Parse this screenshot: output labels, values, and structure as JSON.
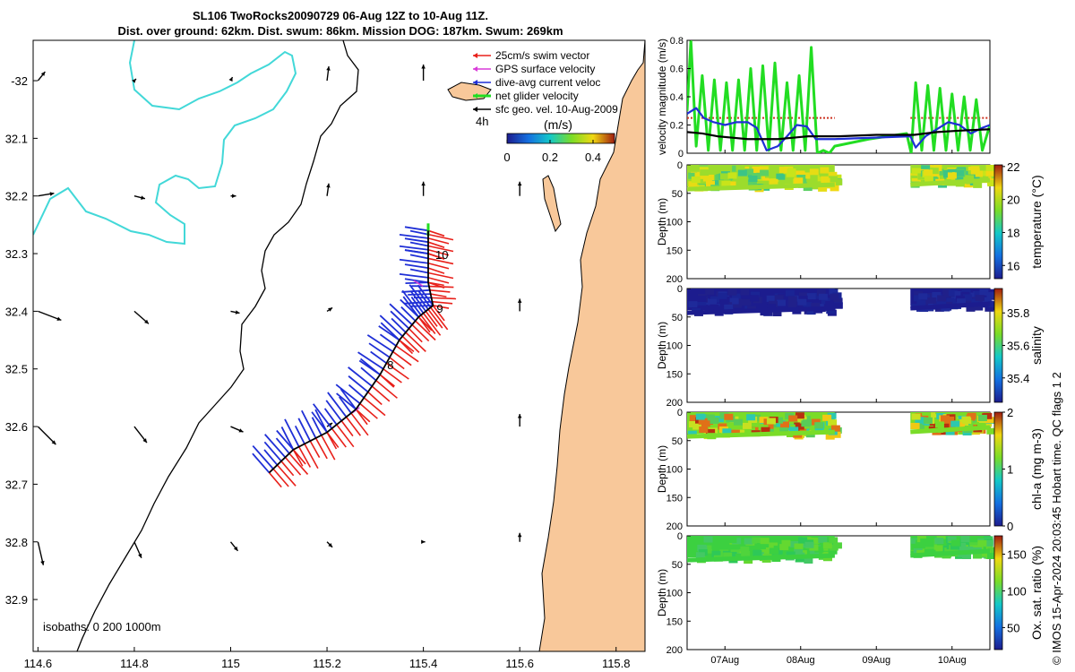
{
  "header": {
    "title_line1": "SL106 TwoRocks20090729 06-Aug 12Z to 10-Aug 11Z.",
    "title_line2": "Dist. over ground: 62km. Dist. swum: 86km. Mission DOG: 187km. Swum: 269km"
  },
  "credit": "© IMOS 15-Apr-2024 20:03:45 Hobart time. QC flags 1  2",
  "colors": {
    "swim_vector": "#e8201a",
    "gps_velocity": "#d93bd9",
    "dive_current": "#1f2fd6",
    "net_glider": "#22dd22",
    "sfc_geo": "#000000",
    "coast_fill": "#f8c89a",
    "isobath_200": "#42d8d8",
    "velocity_threshold": "#cc3322"
  },
  "chart_data": [
    {
      "type": "scatter",
      "id": "map",
      "x_ticks": [
        "114.6",
        "114.8",
        "115",
        "115.2",
        "115.4",
        "115.6",
        "115.8"
      ],
      "y_ticks": [
        "-32",
        "32.1",
        "32.2",
        "32.3",
        "32.4",
        "32.5",
        "32.6",
        "32.7",
        "32.8",
        "32.9"
      ],
      "xlim": [
        114.59,
        115.86
      ],
      "ylim": [
        -32.99,
        -31.93
      ],
      "legend": [
        {
          "label": "25cm/s swim vector",
          "color": "#e8201a"
        },
        {
          "label": "GPS surface velocity",
          "color": "#d93bd9"
        },
        {
          "label": "dive-avg current veloc",
          "color": "#1f2fd6"
        },
        {
          "label": "net glider velocity",
          "color": "#22dd22"
        },
        {
          "label": "sfc geo. vel. 10-Aug-2009",
          "color": "#000000"
        }
      ],
      "legend_position": "top-right",
      "scale_label": "4h",
      "colorbar": {
        "label": "(m/s)",
        "ticks": [
          "0",
          "0.2",
          "0.4"
        ],
        "range": [
          0,
          0.5
        ]
      },
      "isobaths_label": "isobaths: 0   200  1000m",
      "day_labels": [
        "10",
        "9",
        "8"
      ],
      "track": [
        [
          115.08,
          -32.68
        ],
        [
          115.13,
          -32.64
        ],
        [
          115.2,
          -32.61
        ],
        [
          115.26,
          -32.57
        ],
        [
          115.31,
          -32.51
        ],
        [
          115.35,
          -32.45
        ],
        [
          115.39,
          -32.41
        ],
        [
          115.42,
          -32.39
        ],
        [
          115.41,
          -32.35
        ],
        [
          115.41,
          -32.3
        ],
        [
          115.41,
          -32.26
        ]
      ]
    },
    {
      "type": "line",
      "id": "velocity",
      "ylabel": "velocity magnitude (m/s)",
      "ylim": [
        0,
        0.8
      ],
      "y_ticks": [
        "0",
        "0.2",
        "0.4",
        "0.6",
        "0.8"
      ],
      "xlim": [
        6.5,
        10.5
      ],
      "x_ticks": [
        "07Aug",
        "08Aug",
        "09Aug",
        "10Aug"
      ],
      "x_tick_values": [
        7,
        8,
        9,
        10
      ],
      "threshold": 0.25,
      "series": [
        {
          "name": "net glider velocity",
          "color": "#22dd22",
          "note": "oscillating dive cycles",
          "x": [
            6.5,
            6.55,
            6.62,
            6.7,
            6.78,
            6.86,
            6.94,
            7.02,
            7.1,
            7.18,
            7.26,
            7.34,
            7.42,
            7.5,
            7.58,
            7.66,
            7.74,
            7.82,
            7.9,
            7.98,
            8.06,
            8.14,
            8.22,
            8.3,
            8.38,
            8.45,
            8.9,
            9.4,
            9.46,
            9.52,
            9.6,
            9.68,
            9.76,
            9.84,
            9.92,
            10.0,
            10.08,
            10.16,
            10.24,
            10.32,
            10.4,
            10.5
          ],
          "y": [
            0.3,
            0.8,
            0.05,
            0.55,
            0.02,
            0.52,
            0.02,
            0.5,
            0.02,
            0.52,
            0.02,
            0.6,
            0.02,
            0.62,
            0.02,
            0.64,
            0.02,
            0.5,
            0.02,
            0.55,
            0.02,
            0.75,
            0.0,
            0.02,
            0.0,
            0.05,
            0.1,
            0.14,
            0.0,
            0.5,
            0.02,
            0.48,
            0.02,
            0.46,
            0.02,
            0.42,
            0.02,
            0.4,
            0.02,
            0.38,
            0.02,
            0.2
          ]
        },
        {
          "name": "dive-avg current veloc",
          "color": "#1f2fd6",
          "x": [
            6.5,
            6.62,
            6.72,
            6.85,
            7.0,
            7.15,
            7.3,
            7.42,
            7.55,
            7.7,
            7.82,
            7.95,
            8.08,
            8.2,
            8.35,
            8.45,
            9.45,
            9.52,
            9.65,
            9.8,
            9.95,
            10.1,
            10.25,
            10.4,
            10.5
          ],
          "y": [
            0.28,
            0.32,
            0.25,
            0.22,
            0.2,
            0.22,
            0.22,
            0.18,
            0.02,
            0.05,
            0.12,
            0.2,
            0.19,
            0.1,
            0.1,
            0.1,
            0.12,
            0.04,
            0.12,
            0.17,
            0.22,
            0.2,
            0.14,
            0.18,
            0.2
          ]
        },
        {
          "name": "sfc geo. vel.",
          "color": "#000000",
          "x": [
            6.5,
            6.7,
            6.9,
            7.1,
            7.3,
            7.5,
            7.7,
            7.9,
            8.1,
            8.3,
            8.5,
            9.0,
            9.5,
            9.8,
            10.1,
            10.5
          ],
          "y": [
            0.15,
            0.14,
            0.12,
            0.11,
            0.1,
            0.1,
            0.1,
            0.11,
            0.12,
            0.12,
            0.12,
            0.13,
            0.13,
            0.15,
            0.16,
            0.17
          ]
        }
      ]
    },
    {
      "type": "heatmap",
      "id": "temperature",
      "ylabel": "Depth (m)",
      "clabel": "temperature (°C)",
      "y_ticks": [
        "0",
        "50",
        "100",
        "150",
        "200"
      ],
      "ylim": [
        0,
        200
      ],
      "cbar_ticks": [
        "16",
        "18",
        "20",
        "22"
      ],
      "crange": [
        15.2,
        22.1
      ],
      "segments": [
        {
          "x_start": 6.5,
          "x_end": 8.45,
          "max_depth": 38
        },
        {
          "x_start": 9.45,
          "x_end": 10.5,
          "max_depth": 30
        }
      ],
      "palette": "parula-like",
      "dominant": "green-yellow"
    },
    {
      "type": "heatmap",
      "id": "salinity",
      "ylabel": "Depth (m)",
      "clabel": "salinity",
      "y_ticks": [
        "0",
        "50",
        "100",
        "150",
        "200"
      ],
      "ylim": [
        0,
        200
      ],
      "cbar_ticks": [
        "35.4",
        "35.6",
        "35.8"
      ],
      "crange": [
        35.25,
        35.95
      ],
      "segments": [
        {
          "x_start": 6.5,
          "x_end": 8.45,
          "max_depth": 38
        },
        {
          "x_start": 9.45,
          "x_end": 10.5,
          "max_depth": 30
        }
      ],
      "palette": "parula-like",
      "dominant": "dark-blue"
    },
    {
      "type": "heatmap",
      "id": "chla",
      "ylabel": "Depth (m)",
      "clabel": "chl-a (mg m-3)",
      "y_ticks": [
        "0",
        "50",
        "100",
        "150",
        "200"
      ],
      "ylim": [
        0,
        200
      ],
      "cbar_ticks": [
        "0",
        "1",
        "2"
      ],
      "crange": [
        0,
        2
      ],
      "segments": [
        {
          "x_start": 6.5,
          "x_end": 8.45,
          "max_depth": 38
        },
        {
          "x_start": 9.45,
          "x_end": 10.5,
          "max_depth": 30
        }
      ],
      "palette": "parula-like",
      "dominant": "green-yellow-red"
    },
    {
      "type": "heatmap",
      "id": "oxygen",
      "ylabel": "Depth (m)",
      "clabel": "Ox. sat. ratio (%)",
      "y_ticks": [
        "0",
        "50",
        "100",
        "150",
        "200"
      ],
      "ylim": [
        0,
        200
      ],
      "cbar_ticks": [
        "50",
        "100",
        "150"
      ],
      "crange": [
        20,
        175
      ],
      "segments": [
        {
          "x_start": 6.5,
          "x_end": 8.45,
          "max_depth": 38
        },
        {
          "x_start": 9.45,
          "x_end": 10.5,
          "max_depth": 30
        }
      ],
      "palette": "parula-like",
      "dominant": "green",
      "x_ticks": [
        "07Aug",
        "08Aug",
        "09Aug",
        "10Aug"
      ]
    }
  ]
}
